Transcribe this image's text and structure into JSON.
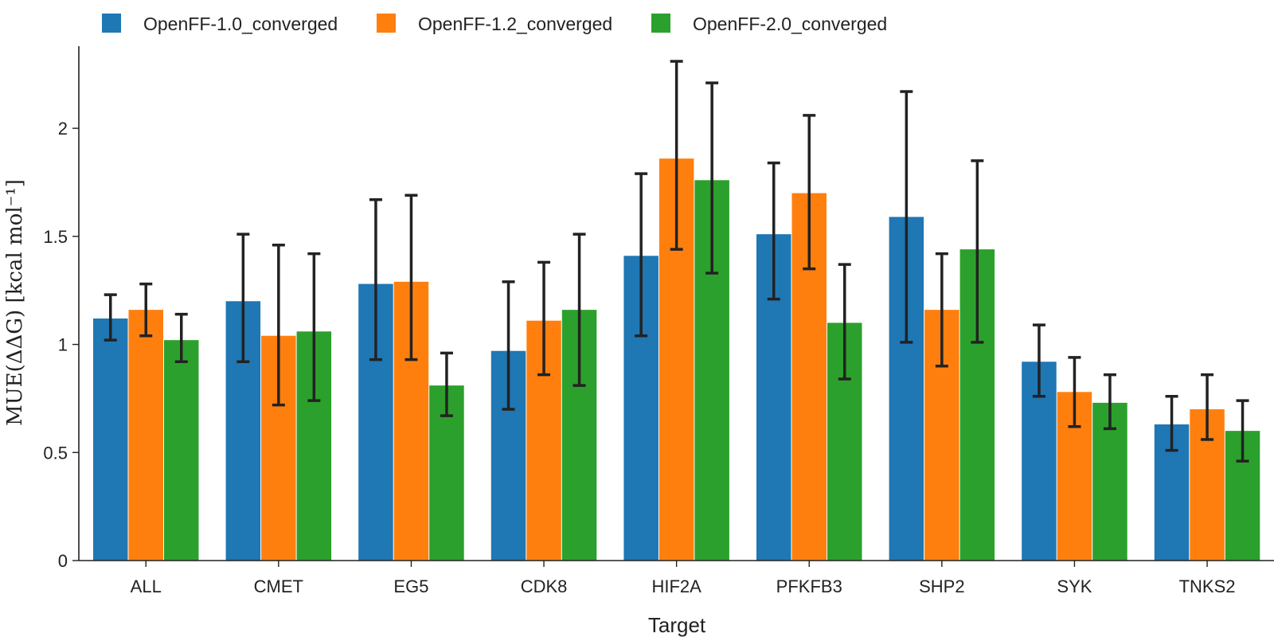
{
  "chart_data": {
    "type": "bar",
    "categories": [
      "ALL",
      "CMET",
      "EG5",
      "CDK8",
      "HIF2A",
      "PFKFB3",
      "SHP2",
      "SYK",
      "TNKS2"
    ],
    "series": [
      {
        "name": "OpenFF-1.0_converged",
        "color": "#1f77b4",
        "values": [
          1.12,
          1.2,
          1.28,
          0.97,
          1.41,
          1.51,
          1.59,
          0.92,
          0.63
        ],
        "err_low": [
          1.02,
          0.92,
          0.93,
          0.7,
          1.04,
          1.21,
          1.01,
          0.76,
          0.51
        ],
        "err_high": [
          1.23,
          1.51,
          1.67,
          1.29,
          1.79,
          1.84,
          2.17,
          1.09,
          0.76
        ]
      },
      {
        "name": "OpenFF-1.2_converged",
        "color": "#ff7f0e",
        "values": [
          1.16,
          1.04,
          1.29,
          1.11,
          1.86,
          1.7,
          1.16,
          0.78,
          0.7
        ],
        "err_low": [
          1.04,
          0.72,
          0.93,
          0.86,
          1.44,
          1.35,
          0.9,
          0.62,
          0.56
        ],
        "err_high": [
          1.28,
          1.46,
          1.69,
          1.38,
          2.31,
          2.06,
          1.42,
          0.94,
          0.86
        ]
      },
      {
        "name": "OpenFF-2.0_converged",
        "color": "#2ca02c",
        "values": [
          1.02,
          1.06,
          0.81,
          1.16,
          1.76,
          1.1,
          1.44,
          0.73,
          0.6
        ],
        "err_low": [
          0.92,
          0.74,
          0.67,
          0.81,
          1.33,
          0.84,
          1.01,
          0.61,
          0.46
        ],
        "err_high": [
          1.14,
          1.42,
          0.96,
          1.51,
          2.21,
          1.37,
          1.85,
          0.86,
          0.74
        ]
      }
    ],
    "yticks": [
      0,
      0.5,
      1,
      1.5,
      2
    ],
    "ytick_labels": [
      "0",
      "0.5",
      "1",
      "1.5",
      "2"
    ],
    "ylim": [
      0,
      2.38
    ],
    "xlabel": "Target",
    "ylabel": "MUE(ΔΔG) [kcal mol⁻¹]",
    "legend_position": "top"
  }
}
